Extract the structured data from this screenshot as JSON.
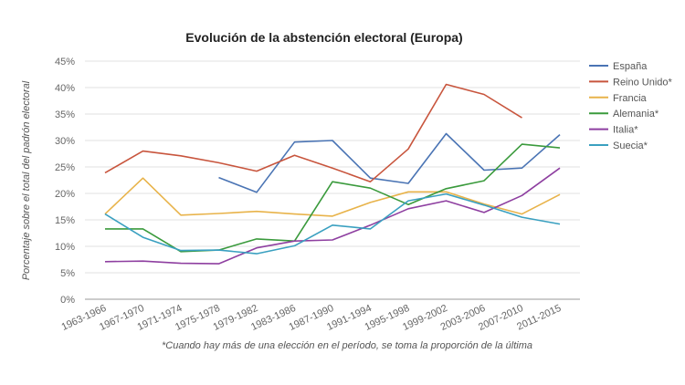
{
  "chart_data": {
    "type": "line",
    "title": "Evolución de la abstención electoral (Europa)",
    "xlabel": "",
    "ylabel": "Porcentaje sobre el total del padrón electoral",
    "note": "*Cuando hay más de una elección en el período, se toma la proporción de la última",
    "ylim": [
      0,
      45
    ],
    "yticks": [
      0,
      5,
      10,
      15,
      20,
      25,
      30,
      35,
      40,
      45
    ],
    "ytick_labels": [
      "0%",
      "5%",
      "10%",
      "15%",
      "20%",
      "25%",
      "30%",
      "35%",
      "40%",
      "45%"
    ],
    "grid": true,
    "legend_position": "right",
    "categories": [
      "1963-1966",
      "1967-1970",
      "1971-1974",
      "1975-1978",
      "1979-1982",
      "1983-1986",
      "1987-1990",
      "1991-1994",
      "1995-1998",
      "1999-2002",
      "2003-2006",
      "2007-2010",
      "2011-2015"
    ],
    "series": [
      {
        "name": "España",
        "color": "#4a74b4",
        "values": [
          null,
          null,
          null,
          23.0,
          20.2,
          29.7,
          30.0,
          22.9,
          21.9,
          31.3,
          24.4,
          24.8,
          31.1
        ]
      },
      {
        "name": "Reino Unido*",
        "color": "#c8553d",
        "values": [
          23.9,
          28.0,
          27.1,
          25.8,
          24.2,
          27.2,
          24.8,
          22.2,
          28.4,
          40.6,
          38.7,
          34.3,
          null
        ]
      },
      {
        "name": "Francia",
        "color": "#e8b34a",
        "values": [
          16.1,
          22.9,
          15.9,
          16.2,
          16.6,
          16.1,
          15.7,
          18.3,
          20.3,
          20.3,
          18.0,
          16.1,
          19.8
        ]
      },
      {
        "name": "Alemania*",
        "color": "#3a9a3c",
        "values": [
          13.3,
          13.3,
          9.0,
          9.3,
          11.4,
          11.0,
          22.2,
          21.0,
          17.9,
          20.9,
          22.4,
          29.3,
          28.6
        ]
      },
      {
        "name": "Italia*",
        "color": "#8e3fa0",
        "values": [
          7.1,
          7.2,
          6.8,
          6.7,
          9.7,
          11.0,
          11.2,
          14.0,
          17.1,
          18.6,
          16.4,
          19.6,
          24.8
        ]
      },
      {
        "name": "Suecia*",
        "color": "#3aa0c0",
        "values": [
          16.1,
          11.7,
          9.2,
          9.3,
          8.6,
          10.1,
          14.0,
          13.3,
          18.6,
          19.9,
          17.8,
          15.5,
          14.2
        ]
      }
    ]
  }
}
